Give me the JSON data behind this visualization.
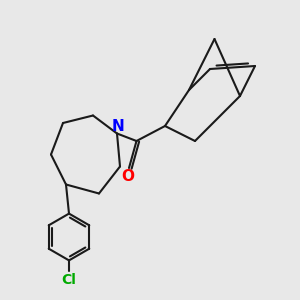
{
  "background_color": "#e8e8e8",
  "bond_color": "#1a1a1a",
  "N_color": "#0000ff",
  "O_color": "#ff0000",
  "Cl_color": "#00aa00",
  "line_width": 1.5,
  "figsize": [
    3.0,
    3.0
  ],
  "dpi": 100,
  "xlim": [
    0,
    10
  ],
  "ylim": [
    0,
    10
  ]
}
